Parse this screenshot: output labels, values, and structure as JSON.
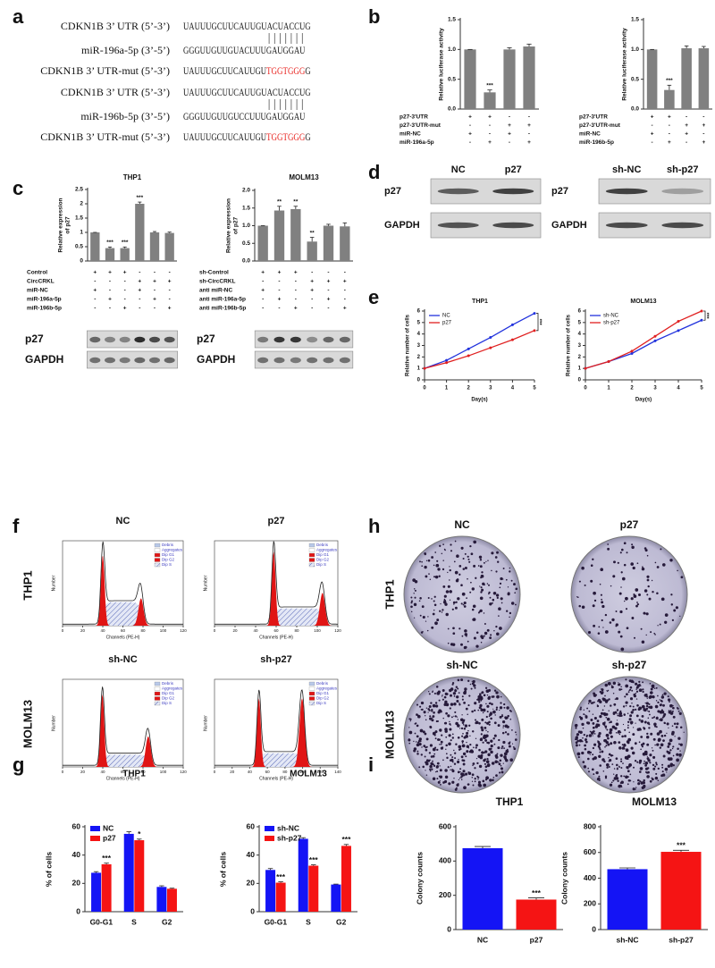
{
  "panel_labels": [
    "a",
    "b",
    "c",
    "d",
    "e",
    "f",
    "h",
    "g",
    "i"
  ],
  "sequences": [
    {
      "label": "CDKN1B 3’ UTR (5’-3’)",
      "parts": [
        {
          "text": "UAUUUGCUUCAUUGUACUACCUG"
        }
      ]
    },
    {
      "label": "miR-196a-5p (3’-5’)",
      "parts": [
        {
          "text": "GGGUUGUUGUACUUUGAUGGAU"
        }
      ]
    },
    {
      "label": "CDKN1B 3’ UTR-mut (5’-3’)",
      "parts": [
        {
          "text": "UAUUUGCUUCAUUGU"
        },
        {
          "text": "TGGTGGG",
          "color": "#e8231f"
        },
        {
          "text": "G"
        }
      ]
    },
    {
      "label": "CDKN1B 3’ UTR (5’-3’)",
      "parts": [
        {
          "text": "UAUUUGCUUCAUUGUACUACCUG"
        }
      ]
    },
    {
      "label": "miR-196b-5p (3’-5’)",
      "parts": [
        {
          "text": "GGGUUGUUGUCCUUUGAUGGAU"
        }
      ]
    },
    {
      "label": "CDKN1B 3’ UTR-mut (5’-3’)",
      "parts": [
        {
          "text": "UAUUUGCUUCAUUGU"
        },
        {
          "text": "TGGTGGG",
          "color": "#e8231f"
        },
        {
          "text": "G"
        }
      ]
    }
  ],
  "chart_data": [
    {
      "type": "bar",
      "ylabel": "Relative luciferase activity",
      "values": [
        1,
        0.28,
        1.0,
        1.05
      ],
      "errors": [
        0,
        0.04,
        0.03,
        0.04
      ],
      "annotations": [
        null,
        "***",
        null,
        null
      ],
      "color": "#808080",
      "ylim": [
        0,
        1.5
      ],
      "yticks": [
        {
          "value": 0,
          "label": "0.0"
        },
        0.5,
        {
          "value": 1,
          "label": "1.0"
        },
        1.5
      ],
      "conditions": [
        {
          "name": "p27-3'UTR",
          "signs": [
            "+",
            "+",
            "-",
            "-"
          ]
        },
        {
          "name": "p27-3'UTR-mut",
          "signs": [
            "-",
            "-",
            "+",
            "+"
          ]
        },
        {
          "name": "miR-NC",
          "signs": [
            "+",
            "-",
            "+",
            "-"
          ]
        },
        {
          "name": "miR-196a-5p",
          "signs": [
            "-",
            "+",
            "-",
            "+"
          ]
        }
      ]
    },
    {
      "type": "bar",
      "ylabel": "Relative luciferase activity",
      "values": [
        1,
        0.32,
        1.02,
        1.02
      ],
      "errors": [
        0,
        0.08,
        0.04,
        0.03
      ],
      "annotations": [
        null,
        "***",
        null,
        null
      ],
      "color": "#808080",
      "ylim": [
        0,
        1.5
      ],
      "yticks": [
        {
          "value": 0,
          "label": "0.0"
        },
        0.5,
        {
          "value": 1,
          "label": "1.0"
        },
        1.5
      ],
      "conditions": [
        {
          "name": "p27-3'UTR",
          "signs": [
            "+",
            "+",
            "-",
            "-"
          ]
        },
        {
          "name": "p27-3'UTR-mut",
          "signs": [
            "-",
            "-",
            "+",
            "+"
          ]
        },
        {
          "name": "miR-NC",
          "signs": [
            "+",
            "-",
            "+",
            "-"
          ]
        },
        {
          "name": "miR-196b-5p",
          "signs": [
            "-",
            "+",
            "-",
            "+"
          ]
        }
      ]
    },
    {
      "type": "bar",
      "title": "THP1",
      "ylabel": [
        "Relative expression",
        "of p27"
      ],
      "values": [
        1,
        0.45,
        0.45,
        2.0,
        1.0,
        0.98
      ],
      "errors": [
        0,
        0.04,
        0.04,
        0.06,
        0.03,
        0.03
      ],
      "annotations": [
        null,
        "***",
        "***",
        "***",
        null,
        null
      ],
      "color": "#808080",
      "ylim": [
        0,
        2.5
      ],
      "yticks": [
        0,
        0.5,
        1,
        1.5,
        2,
        2.5
      ],
      "conditions": [
        {
          "name": "Control",
          "signs": [
            "+",
            "+",
            "+",
            "-",
            "-",
            "-"
          ]
        },
        {
          "name": "CircCRKL",
          "signs": [
            "-",
            "-",
            "-",
            "+",
            "+",
            "+"
          ]
        },
        {
          "name": "miR-NC",
          "signs": [
            "+",
            "-",
            "-",
            "+",
            "-",
            "-"
          ]
        },
        {
          "name": "miR-196a-5p",
          "signs": [
            "-",
            "+",
            "-",
            "-",
            "+",
            "-"
          ]
        },
        {
          "name": "miR-196b-5p",
          "signs": [
            "-",
            "-",
            "+",
            "-",
            "-",
            "+"
          ]
        }
      ]
    },
    {
      "type": "bar",
      "title": "MOLM13",
      "ylabel": [
        "Relative expression",
        "of p27"
      ],
      "values": [
        1,
        1.43,
        1.47,
        0.55,
        1.0,
        0.98
      ],
      "errors": [
        0,
        0.12,
        0.08,
        0.12,
        0.04,
        0.1
      ],
      "annotations": [
        null,
        "**",
        "**",
        "**",
        null,
        null
      ],
      "color": "#808080",
      "ylim": [
        0,
        2
      ],
      "yticks": [
        {
          "value": 0,
          "label": "0.0"
        },
        0.5,
        {
          "value": 1,
          "label": "1.0"
        },
        1.5,
        {
          "value": 2,
          "label": "2.0"
        }
      ],
      "conditions": [
        {
          "name": "sh-Control",
          "signs": [
            "+",
            "+",
            "+",
            "-",
            "-",
            "-"
          ]
        },
        {
          "name": "sh-CircCRKL",
          "signs": [
            "-",
            "-",
            "-",
            "+",
            "+",
            "+"
          ]
        },
        {
          "name": "anti miR-NC",
          "signs": [
            "+",
            "-",
            "-",
            "+",
            "-",
            "-"
          ]
        },
        {
          "name": "anti miR-196a-5p",
          "signs": [
            "-",
            "+",
            "-",
            "-",
            "+",
            "-"
          ]
        },
        {
          "name": "anti miR-196b-5p",
          "signs": [
            "-",
            "-",
            "+",
            "-",
            "-",
            "+"
          ]
        }
      ]
    },
    {
      "type": "line",
      "title": "THP1",
      "xlabel": "Day(s)",
      "ylabel": "Relative number of cells",
      "x": [
        0,
        1,
        2,
        3,
        4,
        5
      ],
      "series": [
        {
          "name": "NC",
          "color": "#2233dd",
          "values": [
            1,
            1.7,
            2.7,
            3.7,
            4.8,
            5.8
          ]
        },
        {
          "name": "p27",
          "color": "#e02020",
          "values": [
            1,
            1.5,
            2.1,
            2.8,
            3.5,
            4.3
          ]
        }
      ],
      "xlim": [
        0,
        5
      ],
      "xticks": [
        0,
        1,
        2,
        3,
        4,
        5
      ],
      "ylim": [
        0,
        6
      ],
      "yticks": [
        0,
        1,
        2,
        3,
        4,
        5,
        6
      ],
      "annotation": "***",
      "legend": "top-left"
    },
    {
      "type": "line",
      "title": "MOLM13",
      "xlabel": "Day(s)",
      "ylabel": "Relative number of cells",
      "x": [
        0,
        1,
        2,
        3,
        4,
        5
      ],
      "series": [
        {
          "name": "sh-NC",
          "color": "#2233dd",
          "values": [
            1,
            1.6,
            2.3,
            3.4,
            4.3,
            5.2
          ]
        },
        {
          "name": "sh-p27",
          "color": "#e02020",
          "values": [
            1,
            1.6,
            2.5,
            3.8,
            5.1,
            6.0
          ]
        }
      ],
      "xlim": [
        0,
        5
      ],
      "xticks": [
        0,
        1,
        2,
        3,
        4,
        5
      ],
      "ylim": [
        0,
        6
      ],
      "yticks": [
        0,
        1,
        2,
        3,
        4,
        5,
        6
      ],
      "annotation": "***",
      "legend": "top-left"
    },
    {
      "type": "grouped-bar",
      "title": "THP1",
      "ylabel": "% of cells",
      "categories": [
        "G0-G1",
        "S",
        "G2"
      ],
      "series": [
        {
          "name": "NC",
          "color": "#1414f5",
          "values": [
            27.5,
            55,
            17.5
          ],
          "errors": [
            0.8,
            1.5,
            0.8
          ]
        },
        {
          "name": "p27",
          "color": "#f51414",
          "values": [
            33.5,
            50.5,
            16.2
          ],
          "errors": [
            0.8,
            0.8,
            0.4
          ],
          "annotations": [
            "***",
            "*",
            null
          ]
        }
      ],
      "ylim": [
        0,
        60
      ],
      "yticks": [
        0,
        20,
        40,
        60
      ],
      "legend": "top-left"
    },
    {
      "type": "grouped-bar",
      "title": "MOLM13",
      "ylabel": "% of cells",
      "categories": [
        "G0-G1",
        "S",
        "G2"
      ],
      "series": [
        {
          "name": "sh-NC",
          "color": "#1414f5",
          "values": [
            29.5,
            51.5,
            19.2
          ],
          "errors": [
            1,
            0.8,
            0.3
          ]
        },
        {
          "name": "sh-p27",
          "color": "#f51414",
          "values": [
            20.5,
            32.5,
            46.5
          ],
          "errors": [
            0.6,
            0.6,
            1
          ],
          "annotations": [
            "***",
            "***",
            "***"
          ]
        }
      ],
      "ylim": [
        0,
        60
      ],
      "yticks": [
        0,
        20,
        40,
        60
      ],
      "legend": "top-left"
    },
    {
      "type": "bar",
      "title": "THP1",
      "ylabel": "Colony counts",
      "categories": [
        "NC",
        "p27"
      ],
      "values": [
        475,
        175
      ],
      "errors": [
        10,
        10
      ],
      "annotations": [
        null,
        "***"
      ],
      "colors": [
        "#1414f5",
        "#f51414"
      ],
      "ylim": [
        0,
        600
      ],
      "yticks": [
        0,
        200,
        400,
        600
      ]
    },
    {
      "type": "bar",
      "title": "MOLM13",
      "ylabel": "Colony counts",
      "categories": [
        "sh-NC",
        "sh-p27"
      ],
      "values": [
        470,
        605
      ],
      "errors": [
        10,
        12
      ],
      "annotations": [
        null,
        "***"
      ],
      "colors": [
        "#1414f5",
        "#f51414"
      ],
      "ylim": [
        0,
        800
      ],
      "yticks": [
        0,
        200,
        400,
        600,
        800
      ]
    }
  ],
  "blots": {
    "c": [
      {
        "rows": [
          "p27",
          "GAPDH"
        ]
      },
      {
        "rows": [
          "p27",
          "GAPDH"
        ]
      }
    ],
    "d": [
      {
        "lanes": [
          "NC",
          "p27"
        ],
        "rows": [
          "p27",
          "GAPDH"
        ]
      },
      {
        "lanes": [
          "sh-NC",
          "sh-p27"
        ],
        "rows": [
          "p27",
          "GAPDH"
        ]
      }
    ]
  },
  "flow": {
    "row_labels": [
      "THP1",
      "MOLM13"
    ],
    "legend": [
      "Debris",
      "Aggregates",
      "Dip G1",
      "Dip G2",
      "Dip S"
    ],
    "plots": [
      {
        "title": "NC",
        "xlabel": "Channels (PE-H)",
        "ylabel": "Number",
        "xticks": [
          0,
          20,
          40,
          60,
          80,
          100,
          120
        ]
      },
      {
        "title": "p27",
        "xlabel": "Channels (PE-H)",
        "ylabel": "Number",
        "xticks": [
          0,
          20,
          40,
          60,
          80,
          100,
          120
        ]
      },
      {
        "title": "sh-NC",
        "xlabel": "Channels (PE-H)",
        "ylabel": "Number",
        "xticks": [
          0,
          20,
          40,
          60,
          80,
          100,
          120
        ]
      },
      {
        "title": "sh-p27",
        "xlabel": "Channels (PE-H)",
        "ylabel": "Number",
        "xticks": [
          0,
          20,
          40,
          60,
          80,
          100,
          120,
          140
        ]
      }
    ]
  },
  "colony": {
    "row_labels": [
      "THP1",
      "MOLM13"
    ],
    "titles": [
      "NC",
      "p27",
      "sh-NC",
      "sh-p27"
    ]
  }
}
